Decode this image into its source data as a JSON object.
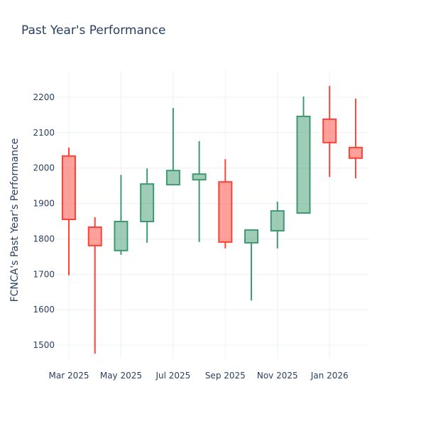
{
  "chart_data": {
    "type": "candlestick",
    "title": "Past Year's Performance",
    "xlabel": "",
    "ylabel": "FCNCA's Past Year's Performance",
    "ylim": [
      1440,
      2275
    ],
    "yticks": [
      1500,
      1600,
      1700,
      1800,
      1900,
      2000,
      2100,
      2200
    ],
    "xtick_labels": [
      {
        "index": 0,
        "label": "Mar 2025"
      },
      {
        "index": 2,
        "label": "May 2025"
      },
      {
        "index": 4,
        "label": "Jul 2025"
      },
      {
        "index": 6,
        "label": "Sep 2025"
      },
      {
        "index": 8,
        "label": "Nov 2025"
      },
      {
        "index": 10,
        "label": "Jan 2026"
      }
    ],
    "increasing_color": "#3D9970",
    "decreasing_color": "#FF4136",
    "grid": true,
    "candles": [
      {
        "month": "2025-03",
        "open": 2034,
        "high": 2058,
        "low": 1697,
        "close": 1855
      },
      {
        "month": "2025-04",
        "open": 1833,
        "high": 1861,
        "low": 1476,
        "close": 1781
      },
      {
        "month": "2025-05",
        "open": 1767,
        "high": 1981,
        "low": 1755,
        "close": 1849
      },
      {
        "month": "2025-06",
        "open": 1849,
        "high": 1999,
        "low": 1789,
        "close": 1955
      },
      {
        "month": "2025-07",
        "open": 1953,
        "high": 2170,
        "low": 1953,
        "close": 1993
      },
      {
        "month": "2025-08",
        "open": 1967,
        "high": 2076,
        "low": 1791,
        "close": 1983
      },
      {
        "month": "2025-09",
        "open": 1961,
        "high": 2025,
        "low": 1773,
        "close": 1791
      },
      {
        "month": "2025-10",
        "open": 1789,
        "high": 1825,
        "low": 1626,
        "close": 1825
      },
      {
        "month": "2025-11",
        "open": 1823,
        "high": 1905,
        "low": 1773,
        "close": 1879
      },
      {
        "month": "2025-12",
        "open": 1873,
        "high": 2202,
        "low": 1873,
        "close": 2146
      },
      {
        "month": "2026-01",
        "open": 2138,
        "high": 2232,
        "low": 1975,
        "close": 2072
      },
      {
        "month": "2026-02",
        "open": 2058,
        "high": 2196,
        "low": 1971,
        "close": 2028
      }
    ]
  }
}
